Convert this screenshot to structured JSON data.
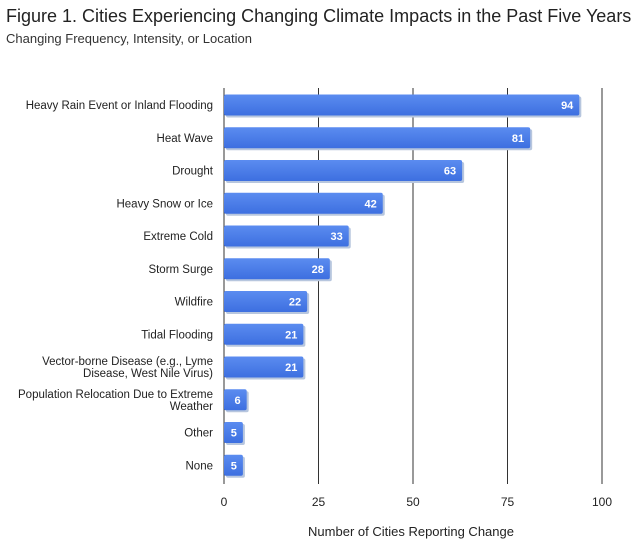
{
  "header": {
    "title": "Figure 1. Cities Experiencing Changing Climate Impacts in the Past Five Years",
    "subtitle": "Changing Frequency, Intensity, or Location"
  },
  "chart_data": {
    "type": "bar",
    "orientation": "horizontal",
    "categories": [
      "Heavy Rain Event or Inland Flooding",
      "Heat Wave",
      "Drought",
      "Heavy Snow or Ice",
      "Extreme Cold",
      "Storm Surge",
      "Wildfire",
      "Tidal Flooding",
      "Vector-borne Disease (e.g., Lyme Disease, West Nile Virus)",
      "Population Relocation Due to Extreme Weather",
      "Other",
      "None"
    ],
    "values": [
      94,
      81,
      63,
      42,
      33,
      28,
      22,
      21,
      21,
      6,
      5,
      5
    ],
    "xlabel": "Number of Cities Reporting Change",
    "ylabel": "",
    "xlim": [
      0,
      100
    ],
    "xticks": [
      0,
      25,
      50,
      75,
      100
    ],
    "grid": true,
    "bar_color": "#4a7fe8",
    "value_labels": true
  }
}
